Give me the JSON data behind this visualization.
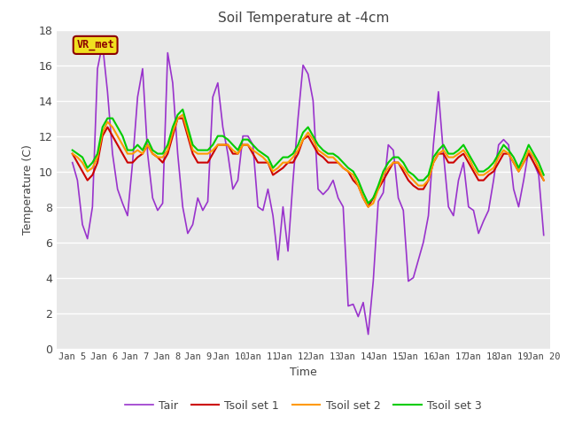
{
  "title": "Soil Temperature at -4cm",
  "xlabel": "Time",
  "ylabel": "Temperature (C)",
  "ylim": [
    0,
    18
  ],
  "xlim": [
    4.5,
    20.2
  ],
  "xtick_labels": [
    "Jan 5",
    "Jan 6",
    "Jan 7",
    "Jan 8",
    "Jan 9",
    "Jan 10",
    "Jan 11",
    "Jan 12",
    "Jan 13",
    "Jan 14",
    "Jan 15",
    "Jan 16",
    "Jan 17",
    "Jan 18",
    "Jan 19",
    "Jan 20"
  ],
  "xtick_positions": [
    5,
    6,
    7,
    8,
    9,
    10,
    11,
    12,
    13,
    14,
    15,
    16,
    17,
    18,
    19,
    20
  ],
  "label_box_text": "VR_met",
  "line_colors": [
    "#9933cc",
    "#cc0000",
    "#ff9900",
    "#00cc00"
  ],
  "line_labels": [
    "Tair",
    "Tsoil set 1",
    "Tsoil set 2",
    "Tsoil set 3"
  ],
  "fig_bg_color": "#ffffff",
  "plot_bg_color": "#e8e8e8",
  "grid_color": "#ffffff",
  "title_color": "#444444",
  "axis_label_color": "#444444",
  "tick_color": "#444444",
  "tair": [
    10.5,
    9.5,
    7.0,
    6.2,
    8.0,
    15.8,
    17.2,
    14.5,
    11.0,
    9.0,
    8.2,
    7.5,
    10.5,
    14.2,
    15.8,
    11.0,
    8.5,
    7.8,
    8.2,
    16.7,
    15.0,
    11.0,
    8.0,
    6.5,
    7.0,
    8.5,
    7.8,
    8.3,
    14.2,
    15.0,
    12.5,
    11.0,
    9.0,
    9.5,
    12.0,
    12.0,
    11.5,
    8.0,
    7.8,
    9.0,
    7.5,
    5.0,
    8.0,
    5.5,
    9.5,
    13.0,
    16.0,
    15.5,
    14.0,
    9.0,
    8.7,
    9.0,
    9.5,
    8.5,
    8.0,
    2.4,
    2.5,
    1.8,
    2.6,
    0.8,
    3.8,
    8.3,
    8.8,
    11.5,
    11.2,
    8.5,
    7.8,
    3.8,
    4.0,
    5.0,
    6.0,
    7.5,
    11.5,
    14.5,
    11.0,
    8.0,
    7.5,
    9.5,
    10.5,
    8.0,
    7.8,
    6.5,
    7.2,
    7.8,
    9.5,
    11.5,
    11.8,
    11.5,
    9.0,
    8.0,
    9.5,
    11.2,
    10.5,
    9.8,
    6.4
  ],
  "tsoil1": [
    11.0,
    10.5,
    10.0,
    9.5,
    9.8,
    10.5,
    12.0,
    12.5,
    12.0,
    11.5,
    11.0,
    10.5,
    10.5,
    10.8,
    11.0,
    11.5,
    11.0,
    10.8,
    10.5,
    11.0,
    12.0,
    13.0,
    13.0,
    12.0,
    11.0,
    10.5,
    10.5,
    10.5,
    11.0,
    11.5,
    11.5,
    11.5,
    11.0,
    11.0,
    11.5,
    11.5,
    11.0,
    10.5,
    10.5,
    10.5,
    9.8,
    10.0,
    10.2,
    10.5,
    10.5,
    11.0,
    11.8,
    12.0,
    11.5,
    11.0,
    10.8,
    10.5,
    10.5,
    10.5,
    10.2,
    10.0,
    9.5,
    9.2,
    8.5,
    8.0,
    8.5,
    9.0,
    9.5,
    10.0,
    10.5,
    10.5,
    10.0,
    9.5,
    9.2,
    9.0,
    9.0,
    9.5,
    10.5,
    11.0,
    11.0,
    10.5,
    10.5,
    10.8,
    11.0,
    10.5,
    10.0,
    9.5,
    9.5,
    9.8,
    10.0,
    10.5,
    11.0,
    11.0,
    10.5,
    10.0,
    10.5,
    11.0,
    10.5,
    10.0,
    9.5
  ],
  "tsoil2": [
    11.0,
    10.8,
    10.5,
    10.0,
    10.2,
    10.8,
    12.2,
    12.8,
    12.5,
    12.0,
    11.5,
    11.0,
    11.0,
    11.2,
    11.0,
    11.5,
    11.0,
    10.8,
    10.8,
    11.2,
    12.2,
    13.0,
    13.2,
    12.2,
    11.2,
    11.0,
    11.0,
    11.0,
    11.2,
    11.5,
    11.5,
    11.5,
    11.2,
    11.0,
    11.5,
    11.5,
    11.2,
    11.0,
    10.8,
    10.5,
    10.0,
    10.2,
    10.5,
    10.5,
    10.8,
    11.2,
    11.8,
    12.2,
    11.8,
    11.2,
    11.0,
    10.8,
    10.8,
    10.5,
    10.2,
    10.0,
    9.8,
    9.2,
    8.5,
    8.0,
    8.2,
    9.0,
    9.8,
    10.2,
    10.5,
    10.5,
    10.2,
    9.8,
    9.5,
    9.2,
    9.2,
    9.5,
    10.5,
    11.0,
    11.2,
    10.8,
    10.8,
    11.0,
    11.2,
    10.8,
    10.2,
    9.8,
    9.8,
    10.0,
    10.2,
    10.8,
    11.2,
    11.0,
    10.5,
    10.0,
    10.5,
    11.2,
    10.8,
    10.2,
    9.5
  ],
  "tsoil3": [
    11.2,
    11.0,
    10.8,
    10.2,
    10.5,
    11.0,
    12.5,
    13.0,
    13.0,
    12.5,
    12.0,
    11.2,
    11.2,
    11.5,
    11.2,
    11.8,
    11.2,
    11.0,
    11.0,
    11.5,
    12.5,
    13.2,
    13.5,
    12.5,
    11.5,
    11.2,
    11.2,
    11.2,
    11.5,
    12.0,
    12.0,
    11.8,
    11.5,
    11.2,
    11.8,
    11.8,
    11.5,
    11.2,
    11.0,
    10.8,
    10.2,
    10.5,
    10.8,
    10.8,
    11.0,
    11.5,
    12.2,
    12.5,
    12.0,
    11.5,
    11.2,
    11.0,
    11.0,
    10.8,
    10.5,
    10.2,
    10.0,
    9.5,
    8.8,
    8.2,
    8.5,
    9.2,
    10.0,
    10.5,
    10.8,
    10.8,
    10.5,
    10.0,
    9.8,
    9.5,
    9.5,
    9.8,
    10.8,
    11.2,
    11.5,
    11.0,
    11.0,
    11.2,
    11.5,
    11.0,
    10.5,
    10.0,
    10.0,
    10.2,
    10.5,
    11.0,
    11.5,
    11.2,
    10.8,
    10.2,
    10.8,
    11.5,
    11.0,
    10.5,
    9.8
  ]
}
